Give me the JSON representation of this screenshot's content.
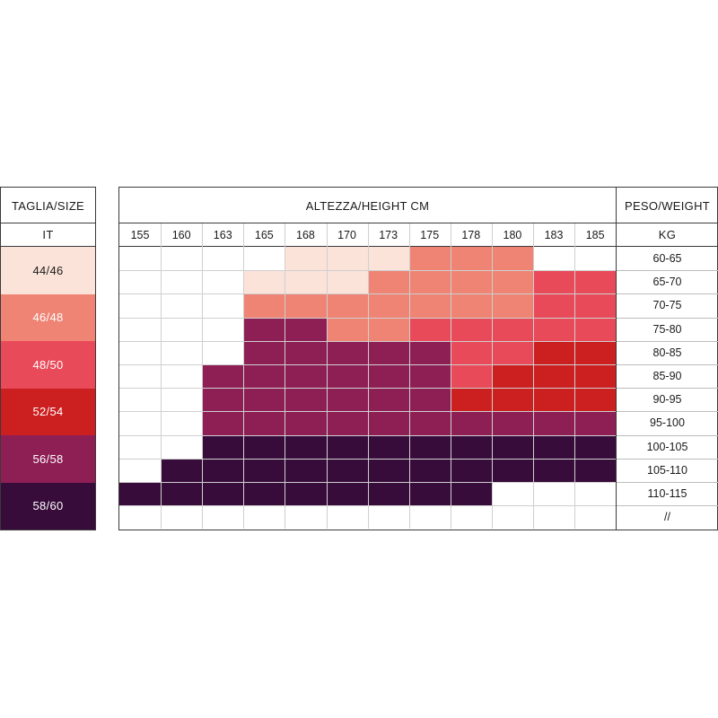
{
  "headers": {
    "size_title": "TAGLIA/SIZE",
    "size_sub": "IT",
    "height_title": "ALTEZZA/HEIGHT CM",
    "weight_title": "PESO/WEIGHT",
    "weight_sub": "KG"
  },
  "legend": [
    {
      "label": "44/46",
      "color": "#fbe3d9",
      "text": "#1a1a1a"
    },
    {
      "label": "46/48",
      "color": "#ef8474",
      "text": "#ffffff"
    },
    {
      "label": "48/50",
      "color": "#e94a59",
      "text": "#ffffff"
    },
    {
      "label": "52/54",
      "color": "#cc1f1f",
      "text": "#ffffff"
    },
    {
      "label": "56/58",
      "color": "#8e1f55",
      "text": "#ffffff"
    },
    {
      "label": "58/60",
      "color": "#380c3a",
      "text": "#ffffff"
    }
  ],
  "chart_data": {
    "type": "heatmap",
    "title": "ALTEZZA/HEIGHT CM",
    "x_label": "ALTEZZA/HEIGHT CM",
    "y_label": "PESO/WEIGHT KG",
    "heights": [
      "155",
      "160",
      "163",
      "165",
      "168",
      "170",
      "173",
      "175",
      "178",
      "180",
      "183",
      "185"
    ],
    "weights": [
      "60-65",
      "65-70",
      "70-75",
      "75-80",
      "80-85",
      "85-90",
      "90-95",
      "95-100",
      "100-105",
      "105-110",
      "110-115",
      "//"
    ],
    "size_labels": [
      "44/46",
      "46/48",
      "48/50",
      "52/54",
      "56/58",
      "58/60"
    ],
    "cells": [
      [
        -1,
        -1,
        -1,
        -1,
        0,
        0,
        0,
        1,
        1,
        1,
        -1,
        -1
      ],
      [
        -1,
        -1,
        -1,
        0,
        0,
        0,
        1,
        1,
        1,
        1,
        2,
        2
      ],
      [
        -1,
        -1,
        -1,
        1,
        1,
        1,
        1,
        1,
        1,
        1,
        2,
        2
      ],
      [
        -1,
        -1,
        -1,
        4,
        4,
        1,
        1,
        2,
        2,
        2,
        2,
        2
      ],
      [
        -1,
        -1,
        -1,
        4,
        4,
        4,
        4,
        4,
        2,
        2,
        3,
        3
      ],
      [
        -1,
        -1,
        4,
        4,
        4,
        4,
        4,
        4,
        2,
        3,
        3,
        3
      ],
      [
        -1,
        -1,
        4,
        4,
        4,
        4,
        4,
        4,
        3,
        3,
        3,
        3
      ],
      [
        -1,
        -1,
        4,
        4,
        4,
        4,
        4,
        4,
        4,
        4,
        4,
        4
      ],
      [
        -1,
        -1,
        5,
        5,
        5,
        5,
        5,
        5,
        5,
        5,
        5,
        5
      ],
      [
        -1,
        5,
        5,
        5,
        5,
        5,
        5,
        5,
        5,
        5,
        5,
        5
      ],
      [
        5,
        5,
        5,
        5,
        5,
        5,
        5,
        5,
        5,
        -1,
        -1,
        -1
      ],
      [
        -1,
        -1,
        -1,
        -1,
        -1,
        -1,
        -1,
        -1,
        -1,
        -1,
        -1,
        -1
      ]
    ]
  }
}
